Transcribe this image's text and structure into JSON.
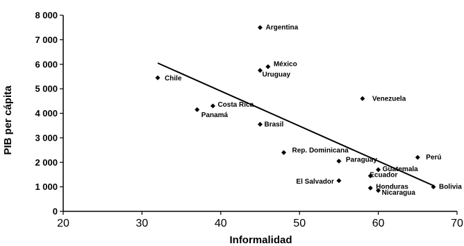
{
  "chart_data": {
    "type": "scatter",
    "title": "",
    "xlabel": "Informalidad",
    "ylabel": "PIB per cápita",
    "xlim": [
      20,
      70
    ],
    "ylim": [
      0,
      8000
    ],
    "xticks": [
      20,
      30,
      40,
      50,
      60,
      70
    ],
    "yticks": [
      0,
      1000,
      2000,
      3000,
      4000,
      5000,
      6000,
      7000,
      8000
    ],
    "xtick_labels": [
      "20",
      "30",
      "40",
      "50",
      "60",
      "70"
    ],
    "ytick_labels": [
      "0",
      "1 000",
      "2 000",
      "3 000",
      "4 000",
      "5 000",
      "6 000",
      "7 000",
      "8 000"
    ],
    "grid": false,
    "legend": "none",
    "marker_color": "#000000",
    "points": [
      {
        "label": "Argentina",
        "x": 45,
        "y": 7500
      },
      {
        "label": "México",
        "x": 46,
        "y": 5900
      },
      {
        "label": "Uruguay",
        "x": 45,
        "y": 5750
      },
      {
        "label": "Chile",
        "x": 32,
        "y": 5450
      },
      {
        "label": "Venezuela",
        "x": 58,
        "y": 4600
      },
      {
        "label": "Costa Rica",
        "x": 39,
        "y": 4300
      },
      {
        "label": "Panamá",
        "x": 37,
        "y": 4150
      },
      {
        "label": "Brasil",
        "x": 45,
        "y": 3550
      },
      {
        "label": "Rep. Dominicana",
        "x": 48,
        "y": 2400
      },
      {
        "label": "Perú",
        "x": 65,
        "y": 2200
      },
      {
        "label": "Paraguay",
        "x": 55,
        "y": 2050
      },
      {
        "label": "Guatemala",
        "x": 60,
        "y": 1700
      },
      {
        "label": "Ecuador",
        "x": 59,
        "y": 1450
      },
      {
        "label": "El Salvador",
        "x": 55,
        "y": 1250
      },
      {
        "label": "Bolivia",
        "x": 67,
        "y": 1000
      },
      {
        "label": "Honduras",
        "x": 59,
        "y": 950
      },
      {
        "label": "Nicaragua",
        "x": 60,
        "y": 850
      }
    ],
    "trendline": {
      "x": [
        32,
        67
      ],
      "y": [
        6050,
        1050
      ]
    }
  }
}
